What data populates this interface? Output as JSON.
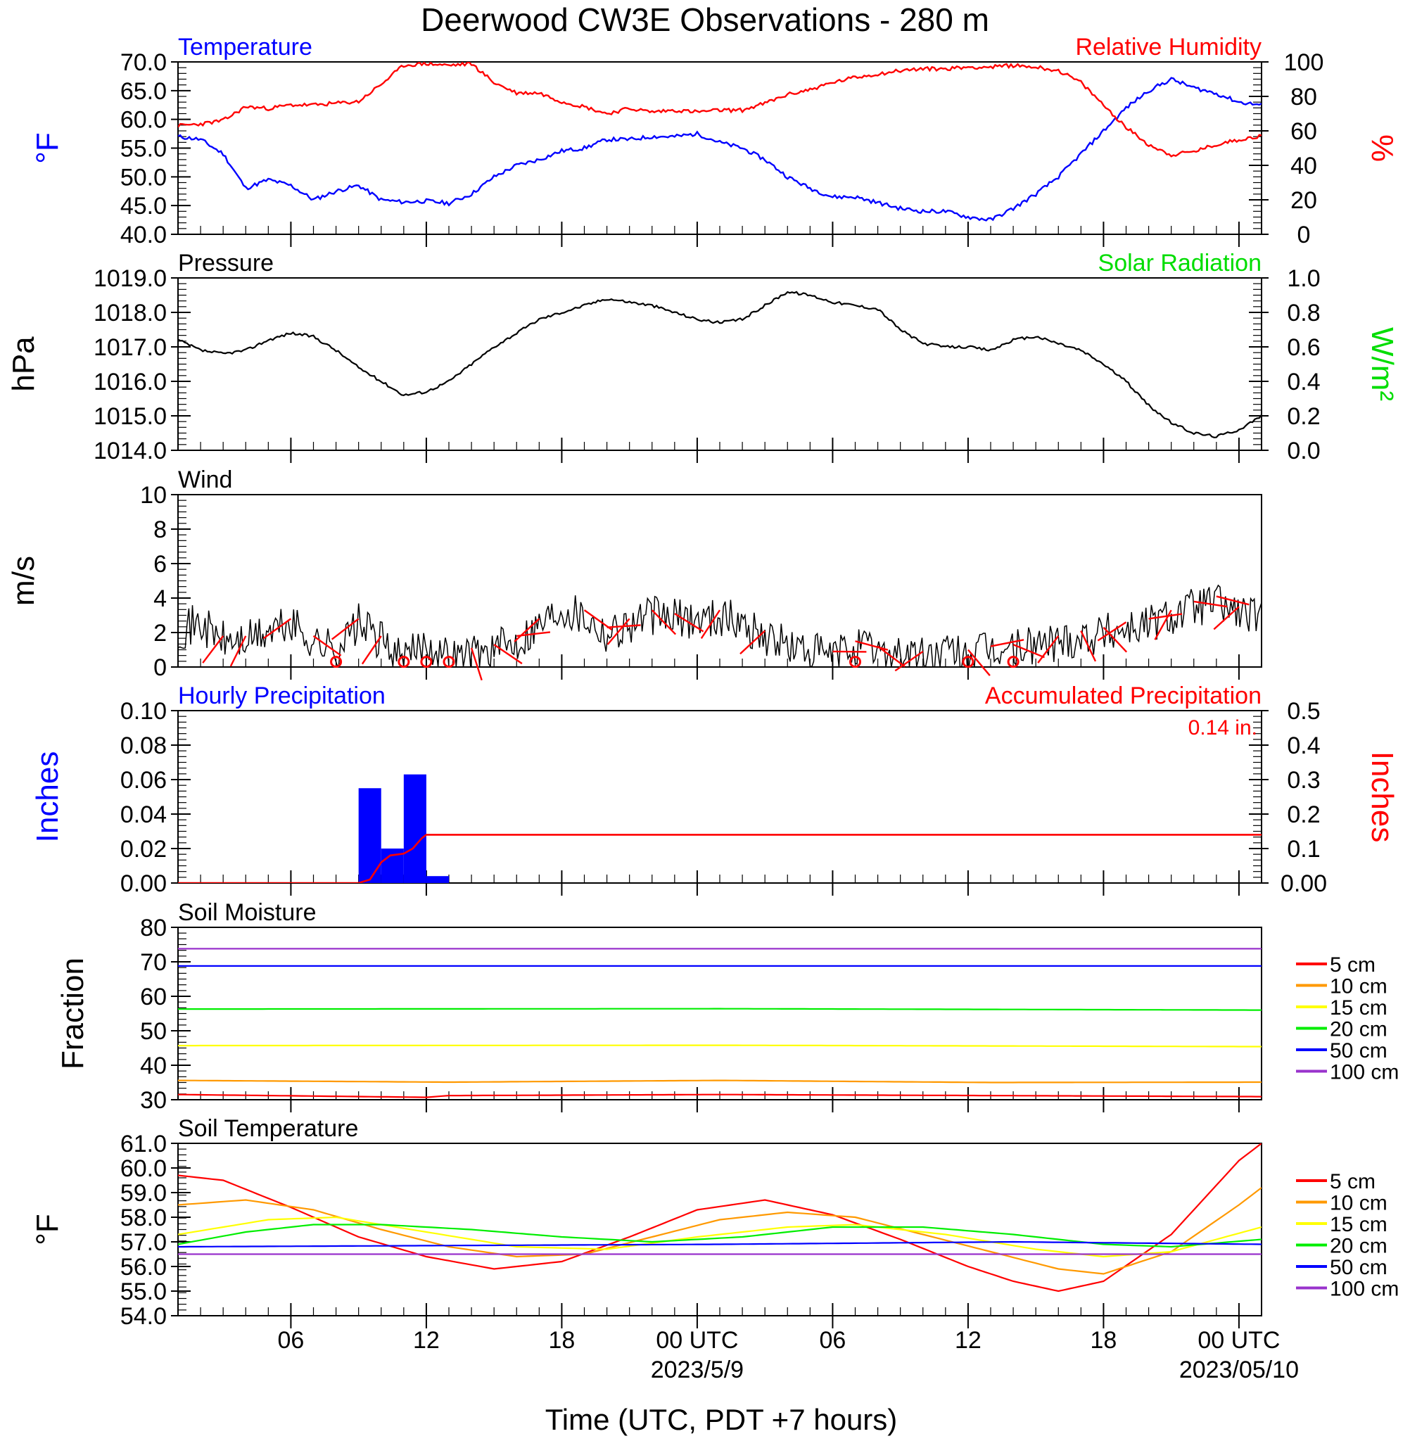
{
  "title": "Deerwood CW3E Observations - 280 m",
  "xaxis": {
    "title": "Time (UTC, PDT +7 hours)",
    "range_hours": [
      1,
      49
    ],
    "major_ticks": [
      {
        "hour": 6,
        "label": "06",
        "date": ""
      },
      {
        "hour": 12,
        "label": "12",
        "date": ""
      },
      {
        "hour": 18,
        "label": "18",
        "date": ""
      },
      {
        "hour": 24,
        "label": "00 UTC",
        "date": "2023/5/9"
      },
      {
        "hour": 30,
        "label": "06",
        "date": ""
      },
      {
        "hour": 36,
        "label": "12",
        "date": ""
      },
      {
        "hour": 42,
        "label": "18",
        "date": ""
      },
      {
        "hour": 48,
        "label": "00 UTC",
        "date": "2023/05/10"
      }
    ]
  },
  "colors": {
    "temperature": "#0000ff",
    "humidity": "#ff0000",
    "pressure": "#000000",
    "solar": "#00dd00",
    "wind": "#000000",
    "wind_barb": "#ff0000",
    "hourly_precip": "#0000ff",
    "accum_precip": "#ff0000",
    "d5": "#ff0000",
    "d10": "#ff9900",
    "d15": "#ffff00",
    "d20": "#00ee00",
    "d50": "#0000ff",
    "d100": "#9933cc"
  },
  "chart_data": [
    {
      "type": "line",
      "id": "temp_rh",
      "title_left": "Temperature",
      "title_right": "Relative Humidity",
      "ylabel_left": "°F",
      "ylabel_right": "%",
      "ylim_left": [
        40,
        70
      ],
      "yticks_left": [
        "70.0",
        "65.0",
        "60.0",
        "55.0",
        "50.0",
        "45.0",
        "40.0"
      ],
      "ylim_right": [
        0,
        100
      ],
      "yticks_right": [
        "100",
        "80",
        "60",
        "40",
        "20",
        "0"
      ],
      "series": [
        {
          "name": "Temperature",
          "axis": "left",
          "color": "#0000ff",
          "x": [
            1,
            2,
            3,
            4,
            5,
            6,
            7,
            8,
            9,
            10,
            11,
            12,
            13,
            14,
            15,
            16,
            17,
            18,
            19,
            20,
            21,
            22,
            23,
            24,
            25,
            26,
            27,
            28,
            29,
            30,
            31,
            32,
            33,
            34,
            35,
            36,
            37,
            38,
            39,
            40,
            41,
            42,
            43,
            44,
            45,
            46,
            47,
            48,
            49
          ],
          "y": [
            57,
            56.5,
            54,
            48,
            49.5,
            48.5,
            46,
            47.5,
            48.5,
            46,
            45.6,
            45.8,
            45.4,
            47,
            50,
            52,
            53,
            54.5,
            55,
            56.5,
            56.5,
            57,
            57,
            57.5,
            56,
            55,
            53,
            50,
            48,
            46.5,
            46.5,
            45.5,
            44.5,
            44,
            44,
            43,
            42.5,
            44.5,
            47,
            50,
            54,
            58,
            62,
            65,
            67,
            65.5,
            64.5,
            63,
            62.5
          ]
        },
        {
          "name": "Relative Humidity",
          "axis": "right",
          "color": "#ff0000",
          "x": [
            1,
            2,
            3,
            4,
            5,
            6,
            7,
            8,
            9,
            10,
            11,
            12,
            13,
            14,
            15,
            16,
            17,
            18,
            19,
            20,
            21,
            22,
            23,
            24,
            25,
            26,
            27,
            28,
            29,
            30,
            31,
            32,
            33,
            34,
            35,
            36,
            37,
            38,
            39,
            40,
            41,
            42,
            43,
            44,
            45,
            46,
            47,
            48,
            49
          ],
          "y": [
            63,
            64,
            66,
            74,
            73,
            75,
            75,
            76,
            77,
            87,
            98,
            99,
            98,
            99,
            88,
            82,
            82,
            77,
            74,
            70,
            73,
            71,
            72,
            71,
            72,
            72,
            76,
            81,
            84,
            88,
            91,
            93,
            95,
            96,
            96,
            97,
            97,
            98,
            97,
            95,
            88,
            75,
            62,
            52,
            46,
            48,
            52,
            55,
            57
          ]
        }
      ]
    },
    {
      "type": "line",
      "id": "pressure",
      "title_left": "Pressure",
      "title_right": "Solar Radiation",
      "ylabel_left": "hPa",
      "ylabel_right": "W/m²",
      "ylim_left": [
        1014,
        1019
      ],
      "yticks_left": [
        "1019.0",
        "1018.0",
        "1017.0",
        "1016.0",
        "1015.0",
        "1014.0"
      ],
      "ylim_right": [
        0,
        1
      ],
      "yticks_right": [
        "1.0",
        "0.8",
        "0.6",
        "0.4",
        "0.2",
        "0.0"
      ],
      "series": [
        {
          "name": "Pressure",
          "axis": "left",
          "color": "#000000",
          "x": [
            1,
            2,
            3,
            4,
            5,
            6,
            7,
            8,
            9,
            10,
            11,
            12,
            13,
            14,
            15,
            16,
            17,
            18,
            19,
            20,
            21,
            22,
            23,
            24,
            25,
            26,
            27,
            28,
            29,
            30,
            31,
            32,
            33,
            34,
            35,
            36,
            37,
            38,
            39,
            40,
            41,
            42,
            43,
            44,
            45,
            46,
            47,
            48,
            49
          ],
          "y": [
            1017.2,
            1016.9,
            1016.8,
            1016.9,
            1017.2,
            1017.4,
            1017.3,
            1016.9,
            1016.4,
            1016.0,
            1015.6,
            1015.7,
            1016.0,
            1016.5,
            1017.0,
            1017.4,
            1017.8,
            1018.0,
            1018.2,
            1018.4,
            1018.3,
            1018.2,
            1018.0,
            1017.8,
            1017.7,
            1017.8,
            1018.2,
            1018.6,
            1018.5,
            1018.3,
            1018.2,
            1018.1,
            1017.5,
            1017.1,
            1017.0,
            1017.0,
            1016.9,
            1017.2,
            1017.3,
            1017.1,
            1016.9,
            1016.5,
            1016.0,
            1015.3,
            1014.8,
            1014.5,
            1014.4,
            1014.6,
            1015.0
          ]
        },
        {
          "name": "Solar Radiation",
          "axis": "right",
          "color": "#00dd00",
          "x": [],
          "y": []
        }
      ]
    },
    {
      "type": "line",
      "id": "wind",
      "title_left": "Wind",
      "ylabel_left": "m/s",
      "ylim_left": [
        0,
        10
      ],
      "yticks_left": [
        "10",
        "8",
        "6",
        "4",
        "2",
        "0"
      ],
      "series": [
        {
          "name": "Wind speed",
          "axis": "left",
          "color": "#000000",
          "x": [
            1,
            2,
            3,
            4,
            5,
            6,
            7,
            8,
            9,
            10,
            11,
            12,
            13,
            14,
            15,
            16,
            17,
            18,
            19,
            20,
            21,
            22,
            23,
            24,
            25,
            26,
            27,
            28,
            29,
            30,
            31,
            32,
            33,
            34,
            35,
            36,
            37,
            38,
            39,
            40,
            41,
            42,
            43,
            44,
            45,
            46,
            47,
            48,
            49
          ],
          "y": [
            2.2,
            2.5,
            1.5,
            1.5,
            2.0,
            2.5,
            1.5,
            1.0,
            2.5,
            1.5,
            0.3,
            1.5,
            0.5,
            0.8,
            1.0,
            1.5,
            2.5,
            3.5,
            3.0,
            2.0,
            2.5,
            3.0,
            2.8,
            2.8,
            3.0,
            2.5,
            1.8,
            1.2,
            0.8,
            0.6,
            1.2,
            0.9,
            0.8,
            0.6,
            0.8,
            0.7,
            0.9,
            1.0,
            1.3,
            1.5,
            1.8,
            2.0,
            2.3,
            2.5,
            3.0,
            3.5,
            3.8,
            3.2,
            2.8
          ]
        }
      ],
      "barbs_hours": [
        3,
        4,
        6,
        7,
        9,
        10,
        14,
        15,
        16,
        17,
        19,
        20,
        21,
        22,
        23,
        25,
        27,
        30,
        31,
        32,
        34,
        36,
        37,
        38,
        40,
        41,
        42,
        43,
        44,
        45,
        46,
        47,
        48
      ],
      "calm_hours": [
        8,
        11,
        12,
        13,
        31,
        36,
        38
      ]
    },
    {
      "type": "bar",
      "id": "precip",
      "title_left": "Hourly Precipitation",
      "title_right": "Accumulated Precipitation",
      "annotation": "0.14 in.",
      "ylabel_left": "Inches",
      "ylabel_right": "Inches",
      "ylim_left": [
        0,
        0.1
      ],
      "yticks_left": [
        "0.10",
        "0.08",
        "0.06",
        "0.04",
        "0.02",
        "0.00"
      ],
      "ylim_right": [
        0,
        0.5
      ],
      "yticks_right": [
        "0.5",
        "0.4",
        "0.3",
        "0.2",
        "0.1",
        "0.00"
      ],
      "hourly_bars": [
        {
          "start": 9,
          "end": 10,
          "value": 0.055
        },
        {
          "start": 10,
          "end": 11,
          "value": 0.02
        },
        {
          "start": 11,
          "end": 12,
          "value": 0.063
        },
        {
          "start": 12,
          "end": 13,
          "value": 0.004
        }
      ],
      "accumulated": {
        "x": [
          1,
          9,
          9.5,
          10,
          10.4,
          11,
          11.4,
          11.8,
          12,
          12.5,
          49
        ],
        "y": [
          0,
          0,
          0.01,
          0.06,
          0.08,
          0.085,
          0.1,
          0.13,
          0.14,
          0.14,
          0.14
        ]
      }
    },
    {
      "type": "line",
      "id": "soil_moisture",
      "title_left": "Soil Moisture",
      "ylabel_left": "Fraction",
      "ylim_left": [
        30,
        80
      ],
      "yticks_left": [
        "80",
        "70",
        "60",
        "50",
        "40",
        "30"
      ],
      "legend_position": "right",
      "series": [
        {
          "name": "5 cm",
          "color": "#ff0000",
          "x": [
            1,
            12,
            13,
            25,
            49
          ],
          "y": [
            31.5,
            30.7,
            31.2,
            31.5,
            30.9
          ]
        },
        {
          "name": "10 cm",
          "color": "#ff9900",
          "x": [
            1,
            13,
            25,
            37,
            49
          ],
          "y": [
            35.6,
            35.1,
            35.6,
            35.0,
            35.1
          ]
        },
        {
          "name": "15 cm",
          "color": "#ffff00",
          "x": [
            1,
            25,
            49
          ],
          "y": [
            45.7,
            45.8,
            45.4
          ]
        },
        {
          "name": "20 cm",
          "color": "#00ee00",
          "x": [
            1,
            25,
            49
          ],
          "y": [
            56.3,
            56.4,
            56.0
          ]
        },
        {
          "name": "50 cm",
          "color": "#0000ff",
          "x": [
            1,
            49
          ],
          "y": [
            68.8,
            68.8
          ]
        },
        {
          "name": "100 cm",
          "color": "#9933cc",
          "x": [
            1,
            49
          ],
          "y": [
            73.8,
            73.8
          ]
        }
      ]
    },
    {
      "type": "line",
      "id": "soil_temperature",
      "title_left": "Soil Temperature",
      "ylabel_left": "°F",
      "ylim_left": [
        54,
        61
      ],
      "yticks_left": [
        "61.0",
        "60.0",
        "59.0",
        "58.0",
        "57.0",
        "56.0",
        "55.0",
        "54.0"
      ],
      "legend_position": "right",
      "series": [
        {
          "name": "5 cm",
          "color": "#ff0000",
          "x": [
            1,
            3,
            6,
            9,
            12,
            15,
            18,
            21,
            24,
            27,
            30,
            33,
            36,
            38,
            40,
            42,
            45,
            48,
            49
          ],
          "y": [
            59.7,
            59.5,
            58.4,
            57.2,
            56.4,
            55.9,
            56.2,
            57.2,
            58.3,
            58.7,
            58.1,
            57.1,
            56.0,
            55.4,
            55.0,
            55.4,
            57.3,
            60.3,
            61.0
          ]
        },
        {
          "name": "10 cm",
          "color": "#ff9900",
          "x": [
            1,
            4,
            7,
            10,
            13,
            16,
            19,
            22,
            25,
            28,
            31,
            34,
            37,
            40,
            42,
            45,
            48,
            49
          ],
          "y": [
            58.5,
            58.7,
            58.3,
            57.5,
            56.8,
            56.4,
            56.5,
            57.2,
            57.9,
            58.2,
            58.0,
            57.3,
            56.6,
            55.9,
            55.7,
            56.6,
            58.5,
            59.2
          ]
        },
        {
          "name": "15 cm",
          "color": "#ffff00",
          "x": [
            1,
            5,
            8,
            12,
            16,
            20,
            24,
            28,
            31,
            35,
            39,
            42,
            45,
            49
          ],
          "y": [
            57.3,
            57.9,
            58.0,
            57.4,
            56.8,
            56.7,
            57.2,
            57.6,
            57.7,
            57.3,
            56.7,
            56.4,
            56.6,
            57.6
          ]
        },
        {
          "name": "20 cm",
          "color": "#00ee00",
          "x": [
            1,
            4,
            7,
            10,
            14,
            18,
            22,
            26,
            30,
            34,
            38,
            42,
            45,
            49
          ],
          "y": [
            56.9,
            57.4,
            57.7,
            57.7,
            57.5,
            57.2,
            57.0,
            57.2,
            57.6,
            57.6,
            57.3,
            56.9,
            56.8,
            57.1
          ]
        },
        {
          "name": "50 cm",
          "color": "#0000ff",
          "x": [
            1,
            25,
            38,
            49
          ],
          "y": [
            56.8,
            56.9,
            57.0,
            56.9
          ]
        },
        {
          "name": "100 cm",
          "color": "#9933cc",
          "x": [
            1,
            49
          ],
          "y": [
            56.5,
            56.5
          ]
        }
      ]
    }
  ]
}
